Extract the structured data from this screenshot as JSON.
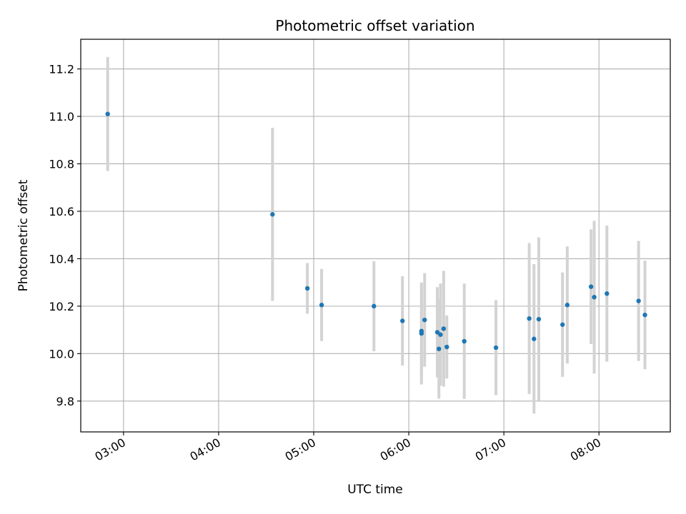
{
  "chart_data": {
    "type": "scatter",
    "title": "Photometric offset variation",
    "xlabel": "UTC time",
    "ylabel": "Photometric offset",
    "grid": true,
    "xlim": [
      "02:33",
      "08:45"
    ],
    "ylim": [
      9.67,
      11.325
    ],
    "x_ticks": [
      "03:00",
      "04:00",
      "05:00",
      "06:00",
      "07:00",
      "08:00"
    ],
    "y_ticks": [
      9.8,
      10.0,
      10.2,
      10.4,
      10.6,
      10.8,
      11.0,
      11.2
    ],
    "point_color": "#1f77b4",
    "errorbar_color": "#d3d3d3",
    "points": [
      {
        "x": "02:50",
        "y": 11.01,
        "err": 0.24
      },
      {
        "x": "04:34",
        "y": 10.587,
        "err": 0.365
      },
      {
        "x": "04:56",
        "y": 10.275,
        "err": 0.107
      },
      {
        "x": "05:05",
        "y": 10.205,
        "err": 0.152
      },
      {
        "x": "05:38",
        "y": 10.2,
        "err": 0.19
      },
      {
        "x": "05:56",
        "y": 10.138,
        "err": 0.188
      },
      {
        "x": "06:08",
        "y": 10.095,
        "err": 0.198
      },
      {
        "x": "06:08",
        "y": 10.085,
        "err": 0.215
      },
      {
        "x": "06:10",
        "y": 10.142,
        "err": 0.197
      },
      {
        "x": "06:18",
        "y": 10.09,
        "err": 0.19
      },
      {
        "x": "06:19",
        "y": 10.02,
        "err": 0.21
      },
      {
        "x": "06:20",
        "y": 10.08,
        "err": 0.215
      },
      {
        "x": "06:22",
        "y": 10.105,
        "err": 0.244
      },
      {
        "x": "06:24",
        "y": 10.028,
        "err": 0.133
      },
      {
        "x": "06:35",
        "y": 10.052,
        "err": 0.243
      },
      {
        "x": "06:55",
        "y": 10.025,
        "err": 0.2
      },
      {
        "x": "07:16",
        "y": 10.148,
        "err": 0.318
      },
      {
        "x": "07:19",
        "y": 10.062,
        "err": 0.315
      },
      {
        "x": "07:22",
        "y": 10.145,
        "err": 0.345
      },
      {
        "x": "07:37",
        "y": 10.122,
        "err": 0.22
      },
      {
        "x": "07:40",
        "y": 10.205,
        "err": 0.247
      },
      {
        "x": "07:55",
        "y": 10.282,
        "err": 0.242
      },
      {
        "x": "07:57",
        "y": 10.238,
        "err": 0.322
      },
      {
        "x": "08:05",
        "y": 10.253,
        "err": 0.287
      },
      {
        "x": "08:25",
        "y": 10.222,
        "err": 0.253
      },
      {
        "x": "08:29",
        "y": 10.163,
        "err": 0.229
      }
    ]
  }
}
